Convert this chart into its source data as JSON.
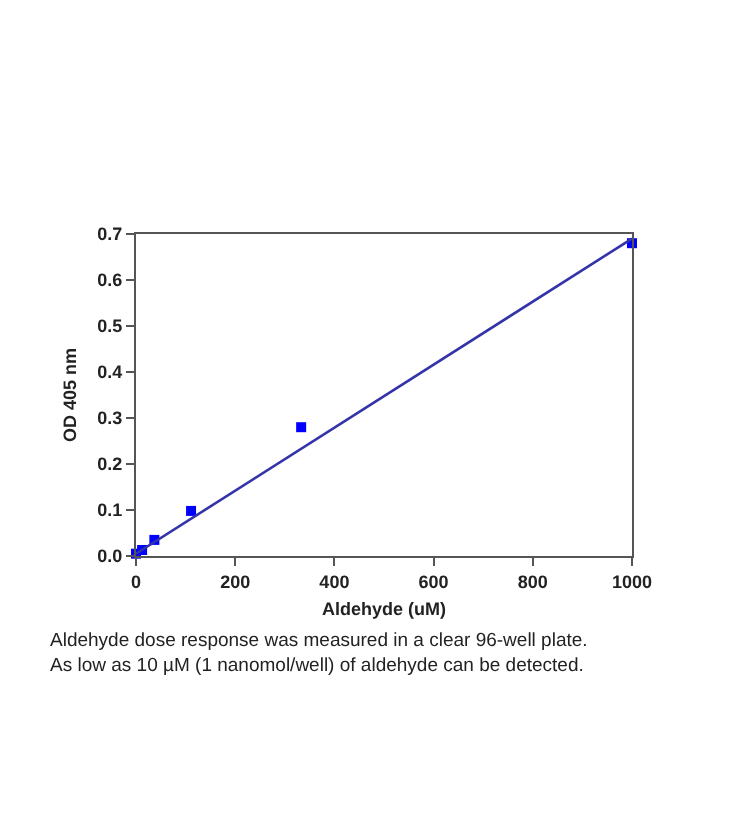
{
  "chart_data": {
    "type": "scatter",
    "xlabel": "Aldehyde (uM)",
    "ylabel": "OD 405 nm",
    "x": [
      0,
      12.3,
      37,
      111,
      333,
      1000
    ],
    "series": [
      {
        "color": "#0000ff",
        "values": [
          0.005,
          0.013,
          0.035,
          0.098,
          0.28,
          0.68
        ],
        "marker": "square"
      },
      {
        "type": "line",
        "color": "#3333aa",
        "x": [
          0,
          1000
        ],
        "values": [
          0.005,
          0.69
        ],
        "marker": "none"
      }
    ],
    "xlim": [
      0,
      1000
    ],
    "xticks": [
      0,
      200,
      400,
      600,
      800,
      1000
    ],
    "ylim": [
      0,
      0.7
    ],
    "yticks": [
      {
        "value": 0,
        "label": "0.0"
      },
      0.1,
      0.2,
      0.3,
      0.4,
      0.5,
      0.6,
      0.7
    ],
    "annotations": [
      "Aldehyde dose response was measured in a clear 96-well plate. As low as 10 µM (1 nanomol/well) of aldehyde can be detected."
    ]
  }
}
